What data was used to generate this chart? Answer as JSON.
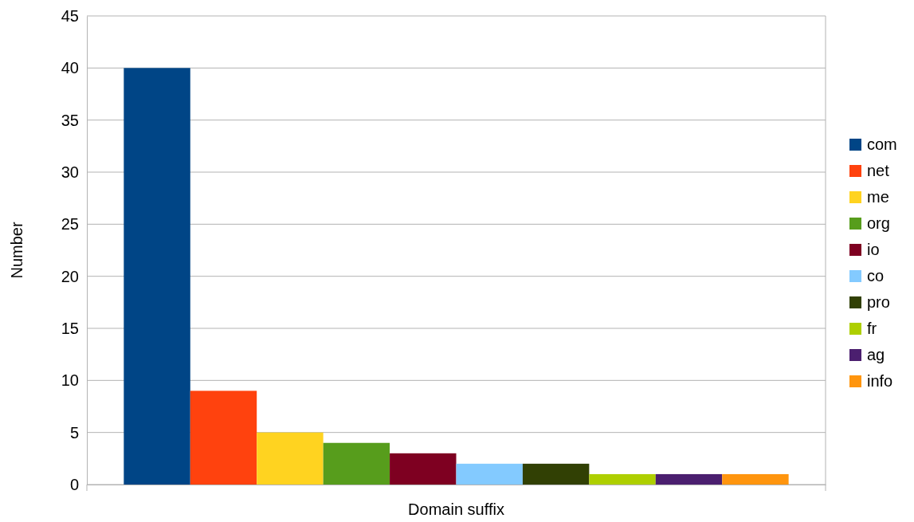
{
  "chart_data": {
    "type": "bar",
    "xlabel": "Domain suffix",
    "ylabel": "Number",
    "categories": [
      null
    ],
    "series": [
      {
        "name": "com",
        "color": "#004586",
        "values": [
          40
        ]
      },
      {
        "name": "net",
        "color": "#ff420e",
        "values": [
          9
        ]
      },
      {
        "name": "me",
        "color": "#ffd320",
        "values": [
          5
        ]
      },
      {
        "name": "org",
        "color": "#579d1c",
        "values": [
          4
        ]
      },
      {
        "name": "io",
        "color": "#7e0021",
        "values": [
          3
        ]
      },
      {
        "name": "co",
        "color": "#83caff",
        "values": [
          2
        ]
      },
      {
        "name": "pro",
        "color": "#314004",
        "values": [
          2
        ]
      },
      {
        "name": "fr",
        "color": "#aecf00",
        "values": [
          1
        ]
      },
      {
        "name": "ag",
        "color": "#4b1f6f",
        "values": [
          1
        ]
      },
      {
        "name": "info",
        "color": "#ff950e",
        "values": [
          1
        ]
      }
    ],
    "ylim": [
      0,
      45
    ],
    "yticks": [
      0,
      5,
      10,
      15,
      20,
      25,
      30,
      35,
      40,
      45
    ],
    "grid": "y",
    "legend": "right"
  }
}
